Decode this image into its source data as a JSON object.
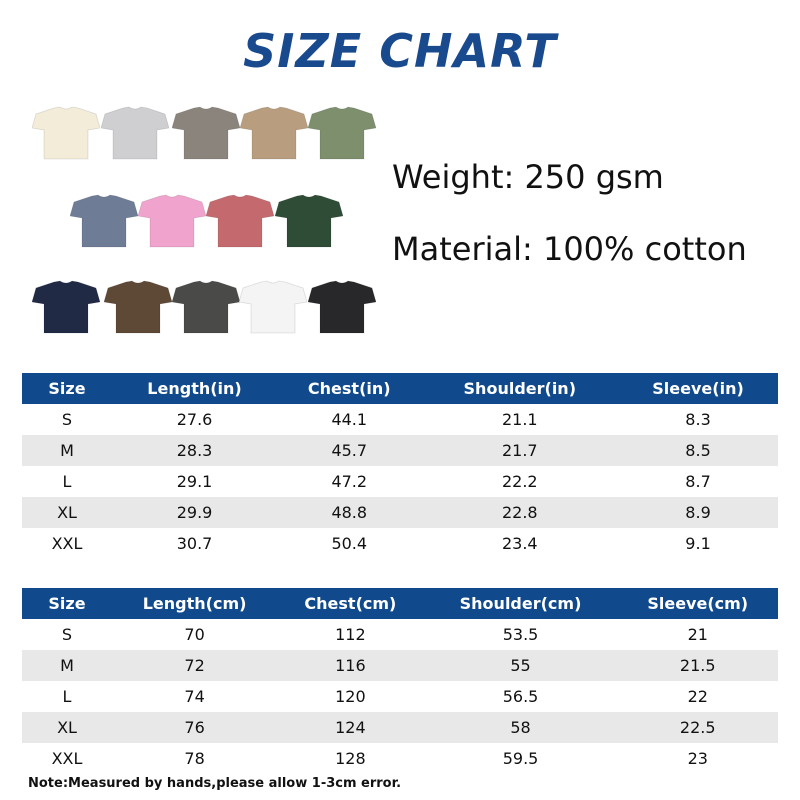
{
  "title": "SIZE CHART",
  "specs": {
    "weight": "Weight: 250 gsm",
    "material": "Material: 100% cotton"
  },
  "shirt_colors": [
    [
      "#f2ecd8",
      "#cfcfd1",
      "#8b847c",
      "#b89e7e",
      "#7d8f6c"
    ],
    [
      "#6e7d95",
      "#f0a3cc",
      "#c46a6e",
      "#2e4c36"
    ],
    [
      "#202a45",
      "#5e4836",
      "#4a4a48",
      "#f4f4f4",
      "#28282b"
    ]
  ],
  "accent_color": "#114a8c",
  "table_in": {
    "headers": [
      "Size",
      "Length(in)",
      "Chest(in)",
      "Shoulder(in)",
      "Sleeve(in)"
    ],
    "rows": [
      [
        "S",
        "27.6",
        "44.1",
        "21.1",
        "8.3"
      ],
      [
        "M",
        "28.3",
        "45.7",
        "21.7",
        "8.5"
      ],
      [
        "L",
        "29.1",
        "47.2",
        "22.2",
        "8.7"
      ],
      [
        "XL",
        "29.9",
        "48.8",
        "22.8",
        "8.9"
      ],
      [
        "XXL",
        "30.7",
        "50.4",
        "23.4",
        "9.1"
      ]
    ]
  },
  "table_cm": {
    "headers": [
      "Size",
      "Length(cm)",
      "Chest(cm)",
      "Shoulder(cm)",
      "Sleeve(cm)"
    ],
    "rows": [
      [
        "S",
        "70",
        "112",
        "53.5",
        "21"
      ],
      [
        "M",
        "72",
        "116",
        "55",
        "21.5"
      ],
      [
        "L",
        "74",
        "120",
        "56.5",
        "22"
      ],
      [
        "XL",
        "76",
        "124",
        "58",
        "22.5"
      ],
      [
        "XXL",
        "78",
        "128",
        "59.5",
        "23"
      ]
    ]
  },
  "note": "Note:Measured by hands,please allow 1-3cm error."
}
